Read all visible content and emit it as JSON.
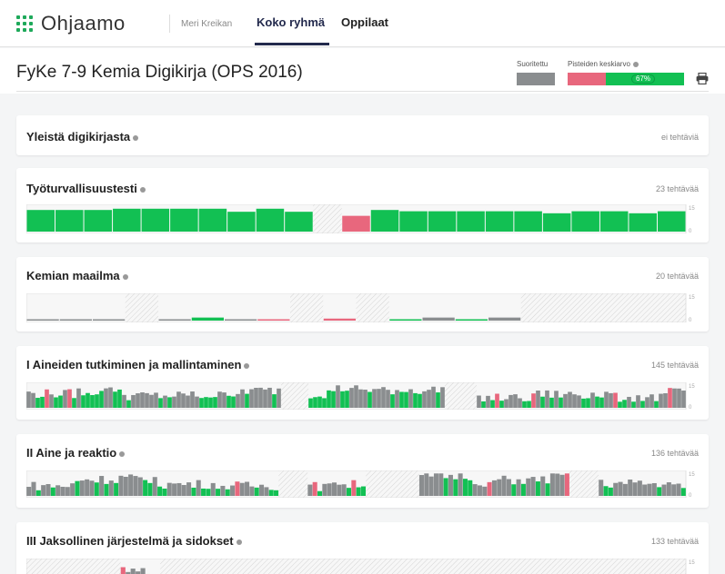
{
  "app": {
    "logo_text": "Ohjaamo",
    "teacher_name": "Meri Kreikan",
    "tabs": [
      {
        "label": "Koko ryhmä",
        "active": true
      },
      {
        "label": "Oppilaat",
        "active": false
      }
    ]
  },
  "course": {
    "title": "FyKe 7-9 Kemia Digikirja (OPS 2016)",
    "legend_done": "Suoritettu",
    "legend_avg": "Pisteiden keskiarvo",
    "avg_percent": 67,
    "avg_label": "67%"
  },
  "colors": {
    "green": "#12c053",
    "gray": "#8a8d8f",
    "red": "#e8677d",
    "navy": "#232a4d"
  },
  "sections": [
    {
      "title": "Yleistä digikirjasta",
      "count": "ei tehtäviä"
    },
    {
      "title": "Työturvallisuustesti",
      "count": "23 tehtävää"
    },
    {
      "title": "Kemian maailma",
      "count": "20 tehtävää"
    },
    {
      "title": "I Aineiden tutkiminen ja mallintaminen",
      "count": "145 tehtävää"
    },
    {
      "title": "II Aine ja reaktio",
      "count": "136 tehtävää"
    },
    {
      "title": "III Jaksollinen järjestelmä ja sidokset",
      "count": "133 tehtävää"
    }
  ],
  "axis": {
    "max_label": "15",
    "min_label": "0"
  },
  "chart_data": [
    {
      "type": "bar",
      "name": "Työturvallisuustesti",
      "values": [
        0.85,
        0.85,
        0.85,
        0.9,
        0.9,
        0.9,
        0.9,
        0.78,
        0.9,
        0.78,
        null,
        0.62,
        0.85,
        0.8,
        0.8,
        0.8,
        0.8,
        0.8,
        0.72,
        0.8,
        0.8,
        0.72,
        0.8
      ],
      "status": [
        "g",
        "g",
        "g",
        "g",
        "g",
        "g",
        "g",
        "g",
        "g",
        "g",
        "n",
        "r",
        "g",
        "g",
        "g",
        "g",
        "g",
        "g",
        "g",
        "g",
        "g",
        "g",
        "g"
      ]
    },
    {
      "type": "bar",
      "name": "Kemian maailma",
      "values": [
        0.05,
        0.05,
        0.05,
        null,
        0.05,
        0.12,
        0.05,
        0.05,
        null,
        0.08,
        null,
        0.05,
        0.12,
        0.05,
        0.12,
        null,
        null,
        null,
        null,
        null
      ],
      "status": [
        "k",
        "k",
        "k",
        "n",
        "k",
        "g",
        "k",
        "r",
        "n",
        "r",
        "n",
        "g",
        "k",
        "g",
        "k",
        "n",
        "n",
        "n",
        "n",
        "n"
      ]
    },
    {
      "type": "bar",
      "name": "I Aineiden tutkiminen ja mallintaminen",
      "series_summary": "145 tasks; mixed green, gray and red bars with hatched (no answers) gaps"
    },
    {
      "type": "bar",
      "name": "II Aine ja reaktio",
      "series_summary": "136 tasks; mixed green, gray and red bars with hatched (no answers) gaps"
    },
    {
      "type": "bar",
      "name": "III Jaksollinen järjestelmä ja sidokset",
      "series_summary": "133 tasks; mostly hatched (no answers)"
    }
  ]
}
